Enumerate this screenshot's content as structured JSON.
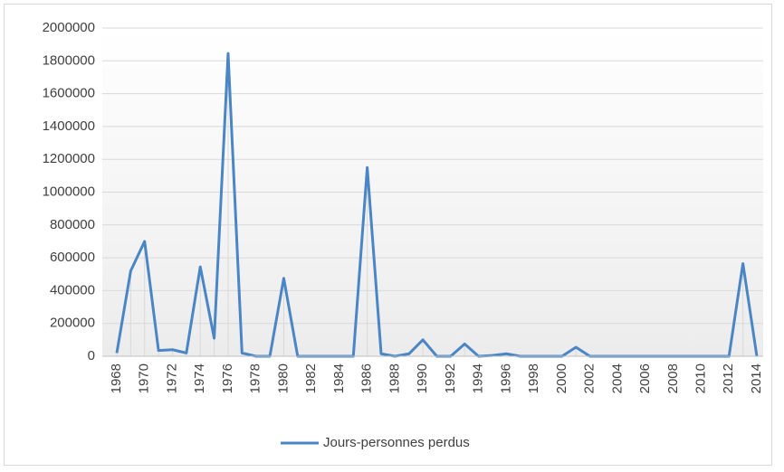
{
  "chart_data": {
    "type": "line",
    "categories": [
      "1968",
      null,
      "1970",
      null,
      "1972",
      null,
      "1974",
      null,
      "1976",
      null,
      "1978",
      null,
      "1980",
      null,
      "1982",
      null,
      "1984",
      null,
      "1986",
      null,
      "1988",
      null,
      "1990",
      null,
      "1992",
      null,
      "1994",
      null,
      "1996",
      null,
      "1998",
      null,
      "2000",
      null,
      "2002",
      null,
      "2004",
      null,
      "2006",
      null,
      "2008",
      null,
      "2010",
      null,
      "2012",
      null,
      "2014"
    ],
    "series": [
      {
        "name": "Jours-personnes perdus",
        "color": "#4a86c5",
        "values": [
          20000,
          520000,
          700000,
          35000,
          40000,
          20000,
          545000,
          110000,
          1845000,
          20000,
          0,
          0,
          475000,
          0,
          0,
          0,
          0,
          0,
          1150000,
          15000,
          0,
          15000,
          100000,
          0,
          0,
          75000,
          0,
          5000,
          15000,
          0,
          0,
          0,
          0,
          55000,
          0,
          0,
          0,
          0,
          0,
          0,
          0,
          0,
          0,
          0,
          0,
          565000,
          0
        ]
      }
    ],
    "ylim": [
      0,
      2000000
    ],
    "yticks": [
      0,
      200000,
      400000,
      600000,
      800000,
      1000000,
      1200000,
      1400000,
      1600000,
      1800000,
      2000000
    ],
    "grid": true,
    "legend": "bottom"
  }
}
